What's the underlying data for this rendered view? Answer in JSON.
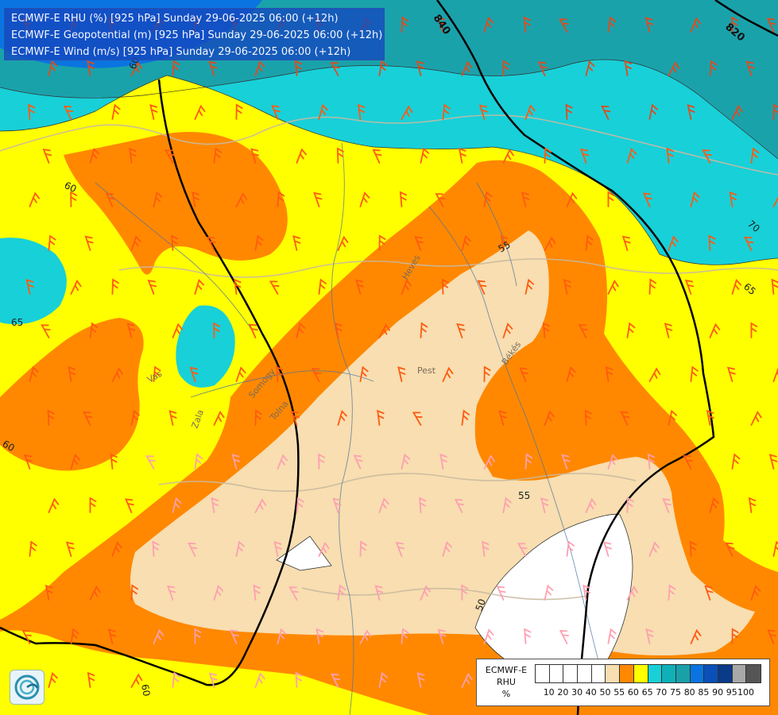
{
  "title_lines": [
    "ECMWF-E RHU (%) [925 hPa] Sunday 29-06-2025 06:00 (+12h)",
    "ECMWF-E Geopotential (m) [925 hPa] Sunday 29-06-2025 06:00 (+12h)",
    "ECMWF-E Wind (m/s) [925 hPa] Sunday 29-06-2025 06:00 (+12h)"
  ],
  "legend": {
    "title_lines": [
      "ECMWF-E",
      "RHU",
      "%"
    ],
    "colors": [
      "#ffffff",
      "#ffffff",
      "#ffffff",
      "#ffffff",
      "#ffffff",
      "#f8deb0",
      "#ff8800",
      "#ffff00",
      "#18d0d8",
      "#10b0b8",
      "#1aa0a8",
      "#0a74e0",
      "#0a50b8",
      "#0a3a88",
      "#a8a8a8",
      "#555555"
    ],
    "ticks": [
      "10",
      "20",
      "30",
      "40",
      "50",
      "55",
      "60",
      "65",
      "70",
      "75",
      "80",
      "85",
      "90",
      "95",
      "100"
    ]
  },
  "colors": {
    "dark_teal": "#1aa2ab",
    "cyan": "#18d0d8",
    "yellow": "#ffff00",
    "orange": "#ff8800",
    "tan": "#f8deb0",
    "white": "#ffffff",
    "blue": "#0a74e0"
  },
  "rhu_labels": [
    "60",
    "60",
    "65",
    "60",
    "55",
    "55",
    "70",
    "65",
    "50",
    "60"
  ],
  "geopotential_labels": [
    "840",
    "820"
  ],
  "place_labels": [
    "Pest",
    "Heves",
    "Békés",
    "Somogy",
    "Tolna",
    "Zala",
    "Vas"
  ]
}
